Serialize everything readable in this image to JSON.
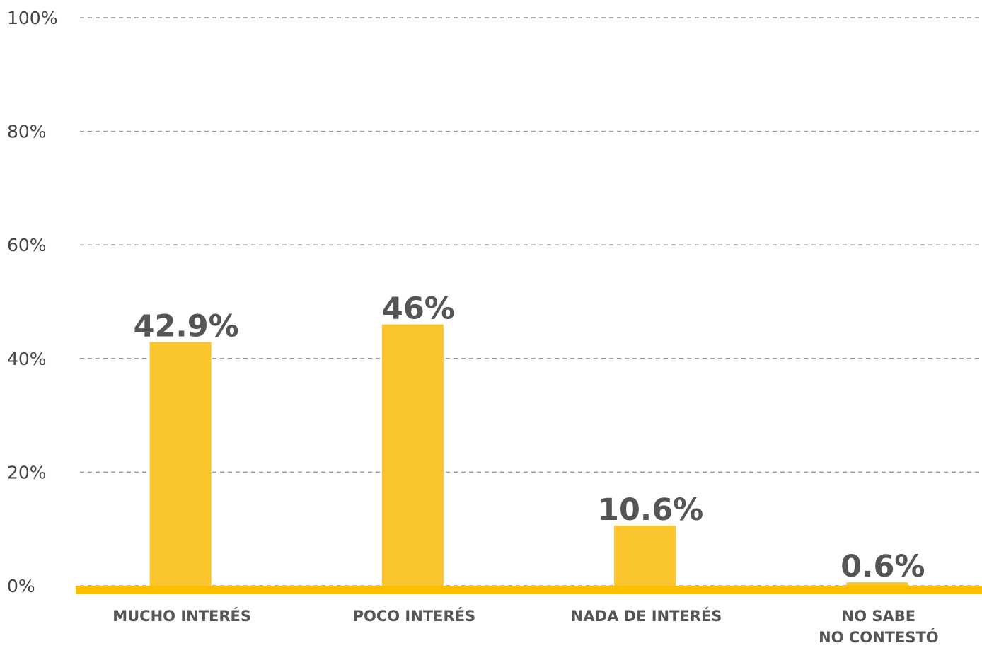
{
  "chart_data": {
    "type": "bar",
    "categories": [
      "MUCHO INTERÉS",
      "POCO INTERÉS",
      "NADA DE INTERÉS",
      "NO SABE\nNO CONTESTÓ"
    ],
    "values": [
      42.9,
      46,
      10.6,
      0.6
    ],
    "value_labels": [
      "42.9%",
      "46%",
      "10.6%",
      "0.6%"
    ],
    "color": "#fac52c",
    "ylim": [
      0,
      100
    ],
    "yticks": [
      {
        "value": 0,
        "label": "0%"
      },
      {
        "value": 20,
        "label": "20%"
      },
      {
        "value": 40,
        "label": "40%"
      },
      {
        "value": 60,
        "label": "60%"
      },
      {
        "value": 80,
        "label": "80%"
      },
      {
        "value": 100,
        "label": "100%"
      }
    ],
    "grid": true
  }
}
